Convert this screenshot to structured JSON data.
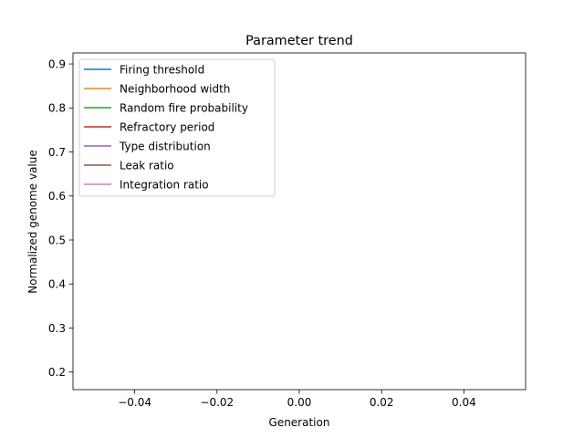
{
  "chart_data": {
    "type": "line",
    "title": "Parameter trend",
    "xlabel": "Generation",
    "ylabel": "Normalized genome value",
    "xlim": [
      -0.055,
      0.055
    ],
    "ylim": [
      0.16,
      0.925
    ],
    "x_ticks": [
      -0.04,
      -0.02,
      0.0,
      0.02,
      0.04
    ],
    "x_tick_labels": [
      "−0.04",
      "−0.02",
      "0.00",
      "0.02",
      "0.04"
    ],
    "y_ticks": [
      0.2,
      0.3,
      0.4,
      0.5,
      0.6,
      0.7,
      0.8,
      0.9
    ],
    "y_tick_labels": [
      "0.2",
      "0.3",
      "0.4",
      "0.5",
      "0.6",
      "0.7",
      "0.8",
      "0.9"
    ],
    "grid": false,
    "legend_location": "top-left",
    "series": [
      {
        "name": "Firing threshold",
        "color": "#1f77b4",
        "x": [],
        "y": []
      },
      {
        "name": "Neighborhood width",
        "color": "#ff7f0e",
        "x": [],
        "y": []
      },
      {
        "name": "Random fire probability",
        "color": "#2ca02c",
        "x": [],
        "y": []
      },
      {
        "name": "Refractory period",
        "color": "#d62728",
        "x": [],
        "y": []
      },
      {
        "name": "Type distribution",
        "color": "#9467bd",
        "x": [],
        "y": []
      },
      {
        "name": "Leak ratio",
        "color": "#8c564b",
        "x": [],
        "y": []
      },
      {
        "name": "Integration ratio",
        "color": "#e377c2",
        "x": [],
        "y": []
      }
    ]
  }
}
